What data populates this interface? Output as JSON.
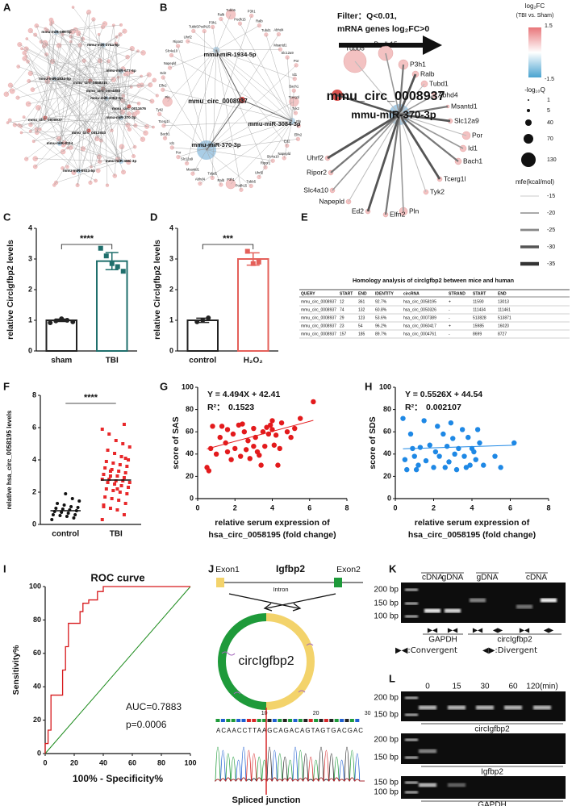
{
  "panel_labels": [
    "A",
    "B",
    "C",
    "D",
    "E",
    "F",
    "G",
    "H",
    "I",
    "J",
    "K",
    "L"
  ],
  "network_a": {
    "mirna_nodes": [
      "mmu-miR-186-5p",
      "mmu-miR-374a-5p",
      "mmu-miR-677-5p",
      "mmu-miR-1934-5p",
      "mmu-miR-3084-3p",
      "mmu-miR-370-3p",
      "mmu-miR-8114",
      "mmu-miR-6933-5p",
      "mmu-miR-466i-3p"
    ],
    "circ_nodes": [
      "mmu_circ_0008310",
      "mmu_circ_0004883",
      "mmu_circ_0011676",
      "mmu_circ_0008937",
      "mmu_circ_0012933"
    ]
  },
  "network_b": {
    "mirna_nodes": [
      "mmu-miR-1934-5p",
      "mmu-miR-3084-3p",
      "mmu-miR-370-3p"
    ],
    "circ_node": "mmu_circ_0008937",
    "genes": [
      "Tubb5",
      "Podh15",
      "P3h1",
      "Ralb",
      "Tubd1",
      "Abhd4",
      "Msantd1",
      "Slc12a9",
      "Por",
      "Id1",
      "Bach1",
      "Tcerg1l",
      "Tyk2",
      "Pln",
      "Elfn2",
      "Ed2",
      "Napepld",
      "Slc4a10",
      "Ripor2",
      "Uhrf2"
    ],
    "filter": [
      "Filter：Q<0.01,",
      "mRNA genes log₂FC>0"
    ],
    "filtered": {
      "circ_node": "mmu_circ_0008937",
      "mirna_node": "mmu-miR-370-3p",
      "genes": [
        "Tubb5",
        "Podh15",
        "P3h1",
        "Ralb",
        "Tubd1",
        "Abhd4",
        "Msantd1",
        "Slc12a9",
        "Por",
        "Id1",
        "Bach1",
        "Tcerg1l",
        "Tyk2",
        "Pln",
        "Elfn2",
        "Ed2",
        "Napepld",
        "Slc4a10",
        "Ripor2",
        "Uhrf2"
      ]
    }
  },
  "legend_b": {
    "fc_title": "log₂FC",
    "fc_subtitle": "(TBI vs. Sham)",
    "fc_range": [
      1.5,
      -1.5
    ],
    "q_title": "-log₁₀Q",
    "q_sizes": [
      1,
      5,
      40,
      70,
      130
    ],
    "mfe_title": "mfe(kcal/mol)",
    "mfe_levels": [
      -15,
      -20,
      -25,
      -30,
      -35
    ]
  },
  "table_e": {
    "title": "Homology analysis of circlgfbp2 between mice and human",
    "header": [
      "QUERY",
      "START",
      "END",
      "IDENTITY",
      "circRNA",
      "STRAND",
      "START",
      "END"
    ],
    "rows": [
      [
        "mmu_circ_0008937",
        "12",
        "361",
        "92.7%",
        "hsa_circ_0058195",
        "+",
        "11590",
        "13013"
      ],
      [
        "mmu_circ_0008937",
        "74",
        "132",
        "60.8%",
        "hsa_circ_0050326",
        "-",
        "111434",
        "111461"
      ],
      [
        "mmu_circ_0008937",
        "29",
        "123",
        "53.6%",
        "hsa_circ_0007389",
        "-",
        "513828",
        "513871"
      ],
      [
        "mmu_circ_0008937",
        "23",
        "54",
        "96.2%",
        "hsa_circ_0060417",
        "+",
        "15985",
        "16020"
      ],
      [
        "mmu_circ_0008937",
        "157",
        "185",
        "89.7%",
        "hsa_circ_0004761",
        "-",
        "8699",
        "8727"
      ]
    ]
  },
  "chart_data": [
    {
      "type": "bar",
      "ylabel": "relative Circlgfbp2 levels",
      "categories": [
        "sham",
        "TBI"
      ],
      "values": [
        1.0,
        2.93
      ],
      "errors": [
        0.04,
        0.28
      ],
      "colors": [
        "#222222",
        "#1f6f6c"
      ],
      "points": [
        [
          0.92,
          0.98,
          1.05,
          1.0,
          0.95
        ],
        [
          3.35,
          3.1,
          2.85,
          2.75,
          2.6
        ]
      ],
      "ylim": [
        0,
        4
      ],
      "yticks": [
        0,
        1,
        2,
        3,
        4
      ],
      "significance": "****"
    },
    {
      "type": "bar",
      "ylabel": "relative Circlgfbp2 levels",
      "categories": [
        "control",
        "H₂O₂"
      ],
      "values": [
        1.0,
        3.0
      ],
      "errors": [
        0.07,
        0.2
      ],
      "colors": [
        "#222222",
        "#e4605a"
      ],
      "points": [
        [
          0.95,
          1.0,
          1.08
        ],
        [
          3.25,
          2.85,
          2.9
        ]
      ],
      "ylim": [
        0,
        4
      ],
      "yticks": [
        0,
        1,
        2,
        3,
        4
      ],
      "significance": "***"
    },
    {
      "type": "strip",
      "ylabel": "relative hsa_circ_0058195 levels",
      "categories": [
        "control",
        "TBI"
      ],
      "colors": [
        "#111111",
        "#e8282a"
      ],
      "points": [
        [
          0.3,
          0.4,
          0.5,
          0.55,
          0.6,
          0.6,
          0.7,
          0.75,
          0.8,
          0.85,
          0.9,
          0.95,
          1.0,
          1.05,
          1.1,
          1.2,
          1.3,
          1.45,
          1.6,
          1.9
        ],
        [
          0.3,
          0.6,
          0.9,
          1.0,
          1.2,
          1.3,
          1.5,
          1.6,
          1.7,
          1.9,
          2.0,
          2.1,
          2.2,
          2.3,
          2.4,
          2.5,
          2.6,
          2.6,
          2.7,
          2.7,
          2.8,
          2.8,
          2.9,
          3.0,
          3.0,
          3.1,
          3.2,
          3.3,
          3.4,
          3.5,
          3.6,
          3.7,
          3.8,
          3.9,
          4.0,
          4.2,
          4.4,
          4.6,
          4.8,
          5.0,
          5.2,
          5.6,
          5.9,
          6.2,
          2.2,
          3.3,
          1.1,
          4.1
        ]
      ],
      "medians": [
        0.85,
        2.75
      ],
      "ylim": [
        0,
        8
      ],
      "yticks": [
        0,
        2,
        4,
        6,
        8
      ],
      "significance": "****"
    },
    {
      "type": "scatter",
      "ylabel": "score of SAS",
      "xlabel": [
        "relative serum expression of",
        "hsa_circ_0058195 (fold change)"
      ],
      "color": "#e31a1c",
      "x": [
        0.5,
        0.6,
        0.7,
        0.8,
        1.0,
        1.2,
        1.3,
        1.5,
        1.6,
        1.8,
        1.9,
        2.0,
        2.2,
        2.3,
        2.5,
        2.6,
        2.7,
        2.8,
        3.0,
        3.0,
        3.1,
        3.2,
        3.3,
        3.5,
        3.6,
        3.7,
        3.8,
        3.9,
        4.0,
        4.1,
        4.2,
        4.3,
        4.4,
        4.5,
        4.8,
        5.0,
        5.2,
        5.5,
        6.2,
        3.4,
        2.4,
        4.0,
        1.6
      ],
      "y": [
        28,
        25,
        45,
        65,
        40,
        55,
        65,
        50,
        42,
        35,
        58,
        45,
        66,
        38,
        60,
        44,
        52,
        36,
        47,
        63,
        55,
        42,
        39,
        60,
        47,
        64,
        58,
        66,
        62,
        48,
        57,
        30,
        45,
        68,
        60,
        55,
        63,
        72,
        87,
        30,
        67,
        70,
        62
      ],
      "fit": {
        "slope": 4.494,
        "intercept": 42.41
      },
      "equation": "Y = 4.494X + 42.41",
      "r2_label": "R²：",
      "r2": 0.1523,
      "xlim": [
        0,
        8
      ],
      "xticks": [
        0,
        2,
        4,
        6,
        8
      ],
      "ylim": [
        0,
        100
      ],
      "yticks": [
        0,
        20,
        40,
        60,
        80,
        100
      ]
    },
    {
      "type": "scatter",
      "ylabel": "score of SDS",
      "xlabel": [
        "relative serum expression of",
        "hsa_circ_0058195 (fold change)"
      ],
      "color": "#1e88e5",
      "x": [
        0.4,
        0.5,
        0.6,
        0.8,
        0.9,
        1.0,
        1.2,
        1.3,
        1.5,
        1.6,
        1.8,
        2.0,
        2.1,
        2.2,
        2.3,
        2.5,
        2.6,
        2.7,
        2.8,
        3.0,
        3.1,
        3.2,
        3.3,
        3.5,
        3.6,
        3.8,
        3.9,
        4.0,
        4.1,
        4.2,
        4.4,
        4.6,
        5.2,
        5.5,
        6.2,
        1.1,
        2.9,
        3.7,
        4.3
      ],
      "y": [
        72,
        35,
        26,
        58,
        45,
        38,
        30,
        46,
        70,
        34,
        48,
        28,
        42,
        65,
        38,
        58,
        28,
        47,
        33,
        54,
        40,
        26,
        45,
        62,
        38,
        55,
        30,
        45,
        42,
        35,
        50,
        30,
        38,
        28,
        50,
        26,
        68,
        28,
        62
      ],
      "fit": {
        "slope": 0.5526,
        "intercept": 44.54
      },
      "equation": "Y = 0.5526X + 44.54",
      "r2_label": "R²：",
      "r2": 0.002107,
      "xlim": [
        0,
        8
      ],
      "xticks": [
        0,
        2,
        4,
        6,
        8
      ],
      "ylim": [
        0,
        100
      ],
      "yticks": [
        0,
        20,
        40,
        60,
        80,
        100
      ]
    },
    {
      "type": "line",
      "title": "ROC curve",
      "ylabel": "Sensitivity%",
      "xlabel": [
        "100% - Specificity%"
      ],
      "color": "#d7191c",
      "reference_color": "#1a8a1a",
      "x": [
        0,
        0,
        2,
        2,
        4,
        4,
        12,
        12,
        14,
        14,
        16,
        16,
        24,
        24,
        26,
        26,
        30,
        30,
        36,
        36,
        40,
        40,
        100
      ],
      "y": [
        0,
        6,
        6,
        14,
        14,
        35,
        35,
        50,
        50,
        64,
        64,
        78,
        78,
        85,
        85,
        90,
        90,
        92,
        92,
        97,
        97,
        100,
        100
      ],
      "auc": "AUC=0.7883",
      "p": "p=0.0006",
      "xlim": [
        0,
        100
      ],
      "xticks": [
        0,
        20,
        40,
        60,
        80,
        100
      ],
      "ylim": [
        0,
        100
      ],
      "yticks": [
        0,
        20,
        40,
        60,
        80,
        100
      ]
    }
  ],
  "diagram_j": {
    "gene": "Igfbp2",
    "exon1": "Exon1",
    "exon2": "Exon2",
    "intron": "Intron",
    "circ": "circIgfbp2",
    "sequence": "ACAACCTTAAGCAGACAGTAGTGACGAC",
    "positions": [
      10,
      20,
      30
    ],
    "junction": "Spliced junction"
  },
  "gel_k": {
    "lane_groups": [
      "cDNA",
      "gDNA",
      "gDNA",
      "cDNA"
    ],
    "markers": [
      "200 bp",
      "150 bp",
      "100 bp"
    ],
    "primers": [
      "▶◀",
      "▶◀",
      "▶◀",
      "◀▶",
      "▶◀",
      "◀▶"
    ],
    "genes": [
      "GAPDH",
      "circIgfbp2"
    ],
    "key": [
      "▶◀:Convergent",
      "◀▶:Divergent"
    ]
  },
  "gel_l": {
    "times": [
      "0",
      "15",
      "30",
      "60",
      "120(min)"
    ],
    "gels": [
      {
        "markers": [
          "200 bp",
          "150 bp"
        ],
        "gene": "circIgfbp2"
      },
      {
        "markers": [
          "200 bp",
          "150 bp"
        ],
        "gene": "Igfbp2"
      },
      {
        "markers": [
          "150 bp",
          "100 bp"
        ],
        "gene": "GAPDH"
      }
    ]
  }
}
